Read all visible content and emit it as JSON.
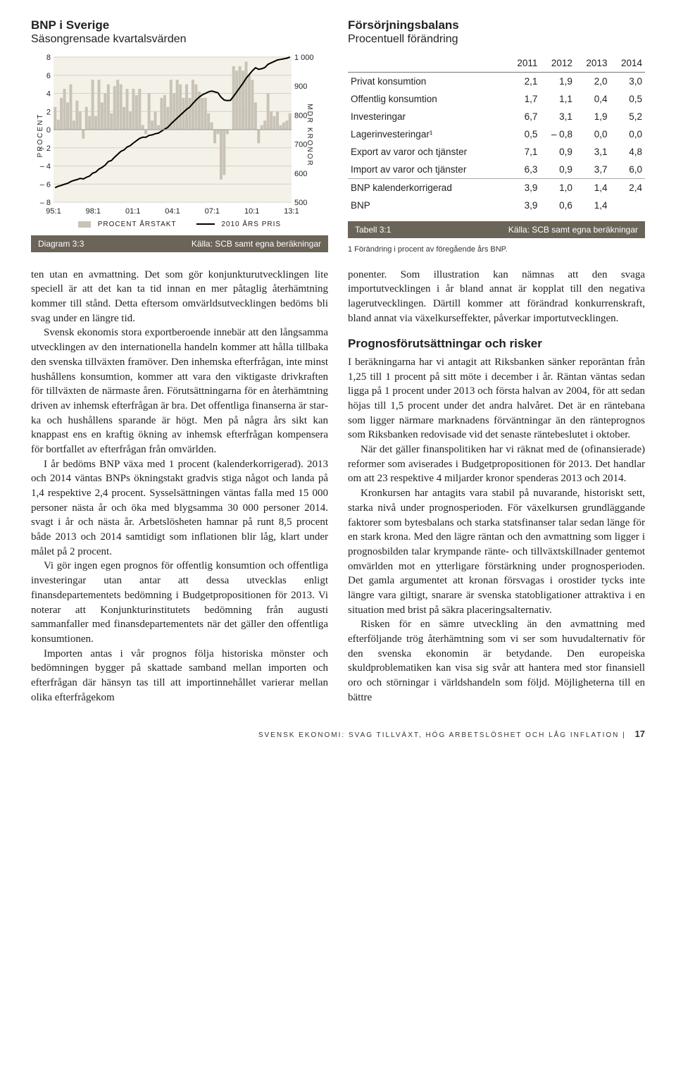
{
  "chart_panel": {
    "title": "BNP i Sverige",
    "subtitle": "Säsongrensade kvartalsvärden",
    "left_axis_label": "PROCENT",
    "right_axis_label": "MDR KRONOR",
    "left_axis": {
      "min": -8,
      "max": 8,
      "ticks": [
        8,
        6,
        4,
        2,
        0,
        -2,
        -4,
        -6,
        -8
      ]
    },
    "right_axis": {
      "min": 500,
      "max": 1000,
      "ticks": [
        1000,
        900,
        800,
        700,
        600,
        500
      ]
    },
    "x_ticks": [
      "95:1",
      "98:1",
      "01:1",
      "04:1",
      "07:1",
      "10:1",
      "13:1"
    ],
    "grid_color": "#d4d1c9",
    "background_color": "#f4f1e9",
    "plot_bg": "#f4f1e9",
    "bar_color": "#c8c3b6",
    "line_color": "#000000",
    "bars": [
      2.5,
      1.1,
      3.5,
      4.5,
      3.0,
      5.0,
      1.0,
      3.2,
      2.0,
      -1.0,
      2.5,
      1.5,
      5.5,
      1.5,
      5.5,
      3.0,
      4.0,
      5.0,
      1.8,
      4.8,
      5.5,
      5.0,
      2.5,
      4.5,
      2.0,
      4.5,
      3.8,
      4.5,
      0.5,
      -0.5,
      4.0,
      1.0,
      2.0,
      0.5,
      3.5,
      3.8,
      2.5,
      5.5,
      4.0,
      5.5,
      5.0,
      3.5,
      5.0,
      3.5,
      5.5,
      5.0,
      4.2,
      3.5,
      3.5,
      1.8,
      0.8,
      -1.5,
      -0.5,
      -5.5,
      -5.0,
      -0.5,
      0.0,
      7.0,
      6.5,
      7.0,
      6.5,
      7.5,
      6.0,
      5.5,
      3.0,
      -1.5,
      0.5,
      1.0,
      4.0,
      2.0,
      1.5,
      2.0,
      0.5,
      0.8,
      1.0,
      1.8
    ],
    "line": [
      550,
      555,
      558,
      562,
      565,
      571,
      575,
      578,
      582,
      580,
      586,
      590,
      600,
      604,
      614,
      620,
      628,
      640,
      644,
      655,
      665,
      675,
      680,
      690,
      695,
      704,
      712,
      720,
      724,
      724,
      730,
      732,
      736,
      738,
      745,
      752,
      758,
      770,
      780,
      790,
      800,
      810,
      820,
      828,
      840,
      852,
      862,
      870,
      875,
      880,
      883,
      880,
      877,
      862,
      852,
      850,
      851,
      865,
      880,
      895,
      910,
      927,
      940,
      953,
      963,
      958,
      960,
      964,
      975,
      980,
      985,
      990,
      992,
      994,
      996,
      1000
    ],
    "legend": [
      {
        "type": "box",
        "color": "#c8c3b6",
        "label": "PROCENT ÅRSTAKT"
      },
      {
        "type": "line",
        "color": "#000000",
        "label": "2010 ÅRS PRIS"
      }
    ],
    "caption_label": "Diagram 3:3",
    "caption_source": "Källa: SCB samt egna beräkningar"
  },
  "table_panel": {
    "title": "Försörjningsbalans",
    "subtitle": "Procentuell förändring",
    "caption_label": "Tabell 3:1",
    "caption_source": "Källa: SCB samt egna beräkningar",
    "caption_bg": "#6b6458",
    "years": [
      "2011",
      "2012",
      "2013",
      "2014"
    ],
    "rows": [
      {
        "label": "Privat konsumtion",
        "vals": [
          "2,1",
          "1,9",
          "2,0",
          "3,0"
        ]
      },
      {
        "label": "Offentlig konsumtion",
        "vals": [
          "1,7",
          "1,1",
          "0,4",
          "0,5"
        ]
      },
      {
        "label": "Investeringar",
        "vals": [
          "6,7",
          "3,1",
          "1,9",
          "5,2"
        ]
      },
      {
        "label": "Lagerinvesteringar¹",
        "vals": [
          "0,5",
          "– 0,8",
          "0,0",
          "0,0"
        ]
      },
      {
        "label": "Export av varor och tjänster",
        "vals": [
          "7,1",
          "0,9",
          "3,1",
          "4,8"
        ]
      },
      {
        "label": "Import av varor och tjänster",
        "vals": [
          "6,3",
          "0,9",
          "3,7",
          "6,0"
        ]
      },
      {
        "label": "BNP kalenderkorrigerad",
        "vals": [
          "3,9",
          "1,0",
          "1,4",
          "2,4"
        ],
        "border": true
      },
      {
        "label": "BNP",
        "vals": [
          "3,9",
          "0,6",
          "1,4",
          ""
        ]
      }
    ],
    "footnote": "1   Förändring i procent av föregående års BNP."
  },
  "body": {
    "p1a": "ten utan en avmattning. Det som gör konjunkturut­vecklingen lite speciell är att det kan ta tid innan en mer påtaglig återhämtning kommer till stånd. Detta eftersom omvärldsutvecklingen bedöms bli svag un­der en längre tid.",
    "p1b": "Svensk ekonomis stora exportberoende innebär att den långsamma utvecklingen av den internationella handeln kommer att hålla tillbaka den svenska tillväx­ten framöver. Den inhemska efterfrågan, inte minst hushållens konsumtion, kommer att vara den vikti­gaste drivkraften för tillväxten de närmaste åren. För­utsättningarna för en återhämtning driven av inhemsk efterfrågan är bra. Det offentliga finanserna är star­ka och hushållens sparande är högt. Men på några års sikt kan knappast ens en kraftig ökning av inhemsk efterfrågan kompensera för bortfallet av efterfrågan från omvärlden.",
    "p1c": "I år bedöms BNP växa med 1 procent (kalenderkor­rigerad). 2013 och 2014 väntas BNPs ökningstakt grad­vis stiga något och landa på 1,4 respektive 2,4 procent. Sysselsättningen väntas falla med 15 000 personer nästa år och öka med blygsamma 30 000 personer 2014. svagt i år och nästa år. Arbetslösheten hamnar på runt 8,5 procent både 2013 och 2014 samtidigt som inflationen blir låg, klart under målet på 2 procent.",
    "p1d": "Vi gör ingen egen prognos för offentlig konsum­tion och offentliga investeringar utan antar att dessa utvecklas enligt finansdepartementets bedömning i Budgetpropositionen för 2013. Vi noterar att Konjunk­turinstitutets bedömning från augusti sammanfaller med finansdepartementets när det gäller den offent­liga konsumtionen.",
    "p1e": "Importen antas i vår prognos följa historiska möns­ter och bedömningen bygger på skattade samband mel­lan importen och efterfrågan där hänsyn tas till att importinnehållet varierar mellan olika efterfrågekom­",
    "p2a": "ponenter. Som illustration kan nämnas att den svaga importutvecklingen i år bland annat är kopplat till den negativa lagerutvecklingen. Därtill kommer att föränd­rad konkurrenskraft, bland annat via växelkurseffekter, påverkar importutvecklingen.",
    "h2": "Prognosförutsättningar och risker",
    "p2b": "I beräkningarna har vi antagit att Riksbanken sänker reporäntan från 1,25 till 1 procent på sitt möte i decem­ber i år. Räntan väntas sedan ligga på 1 procent under 2013 och första halvan av 2004, för att sedan höjas till 1,5 procent under det andra halvåret. Det är en ränte­bana som ligger närmare marknadens förväntningar än den ränteprognos som Riksbanken redovisade vid det senaste räntebeslutet i oktober.",
    "p2c": "När det gäller finanspolitiken har vi räknat med de (ofinansierade) reformer som aviserades i Budgetpro­positionen för 2013. Det handlar om att 23 respektive 4 miljarder kronor spenderas 2013 och 2014.",
    "p2d": "Kronkursen har antagits vara stabil på nuvarande, historiskt sett, starka nivå under prognosperioden. För växelkursen grundläggande faktorer som bytesbalans och starka statsfinanser talar sedan länge för en stark krona. Med den lägre räntan och den avmattning som ligger i prognosbilden talar krympande ränte- och till­växtskillnader gentemot omvärlden mot en ytterligare förstärkning under prognosperioden. Det gamla argu­mentet att kronan försvagas i orostider tycks inte längre vara giltigt, snarare är svenska statobligationer attrakti­va i en situation med brist på säkra placeringsalternativ.",
    "p2e": "Risken för en sämre utveckling än den avmattning med efterföljande trög återhämtning som vi ser som huvudalternativ för den svenska ekonomin är betydan­de. Den europeiska skuldproblematiken kan visa sig svår att hantera med stor finansiell oro och störningar i världshandeln som följd. Möjligheterna till en bättre"
  },
  "footer": {
    "text": "SVENSK EKONOMI: SVAG TILLVÄXT, HÖG ARBETSLÖSHET OCH LÅG INFLATION",
    "sep": "|",
    "page": "17"
  }
}
